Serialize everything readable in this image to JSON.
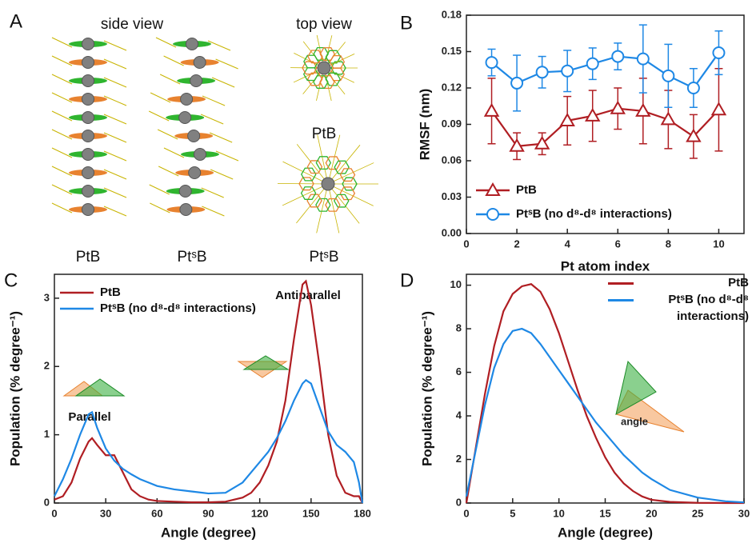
{
  "panel_a": {
    "letter": "A",
    "side_view": "side view",
    "top_view": "top view",
    "labels": [
      "PtB",
      "PtˢB",
      "PtB",
      "PtˢB"
    ]
  },
  "chart_data": [
    {
      "type": "line",
      "panel_label": "B",
      "x_label": "Pt atom index",
      "y_label": "RMSF (nm)",
      "x": [
        1,
        2,
        3,
        4,
        5,
        6,
        7,
        8,
        9,
        10
      ],
      "xlim": [
        0,
        11
      ],
      "xticks": [
        0,
        2,
        4,
        6,
        8,
        10
      ],
      "ylim": [
        0,
        0.18
      ],
      "yticks": [
        {
          "value": 0,
          "label": "0.00"
        },
        {
          "value": 0.03,
          "label": "0.03"
        },
        {
          "value": 0.06,
          "label": "0.06"
        },
        {
          "value": 0.09,
          "label": "0.09"
        },
        {
          "value": 0.12,
          "label": "0.12"
        },
        {
          "value": 0.15,
          "label": "0.15"
        },
        {
          "value": 0.18,
          "label": "0.18"
        }
      ],
      "series": [
        {
          "name": "PtB",
          "color": "#b01e23",
          "marker": "triangle",
          "values": [
            0.101,
            0.072,
            0.074,
            0.093,
            0.097,
            0.103,
            0.101,
            0.094,
            0.08,
            0.102
          ],
          "errors": [
            0.027,
            0.011,
            0.009,
            0.02,
            0.021,
            0.017,
            0.027,
            0.024,
            0.018,
            0.034
          ]
        },
        {
          "name": "PtˢB (no d⁸-d⁸ interactions)",
          "color": "#1e88e5",
          "marker": "circle",
          "values": [
            0.141,
            0.124,
            0.133,
            0.134,
            0.14,
            0.146,
            0.144,
            0.13,
            0.12,
            0.149
          ],
          "errors": [
            0.011,
            0.023,
            0.013,
            0.017,
            0.013,
            0.011,
            0.028,
            0.026,
            0.016,
            0.018
          ]
        }
      ]
    },
    {
      "type": "line",
      "panel_label": "C",
      "x_label": "Angle (degree)",
      "y_label": "Population (% degree⁻¹)",
      "annotations": [
        "Parallel",
        "Antiparallel"
      ],
      "x": [
        0,
        5,
        10,
        15,
        20,
        22,
        25,
        30,
        35,
        40,
        45,
        50,
        55,
        60,
        70,
        80,
        90,
        100,
        110,
        115,
        120,
        125,
        130,
        135,
        140,
        145,
        147,
        150,
        155,
        160,
        165,
        170,
        175,
        178,
        180
      ],
      "xlim": [
        0,
        180
      ],
      "xticks": [
        0,
        30,
        60,
        90,
        120,
        150,
        180
      ],
      "ylim": [
        0,
        3.35
      ],
      "yticks": [
        0,
        1,
        2,
        3
      ],
      "series": [
        {
          "name": "PtB",
          "color": "#b01e23",
          "values": [
            0.05,
            0.1,
            0.3,
            0.65,
            0.9,
            0.95,
            0.85,
            0.7,
            0.7,
            0.45,
            0.2,
            0.1,
            0.05,
            0.03,
            0.02,
            0.01,
            0.01,
            0.02,
            0.08,
            0.15,
            0.3,
            0.55,
            0.9,
            1.5,
            2.4,
            3.2,
            3.25,
            2.9,
            2.0,
            1.0,
            0.4,
            0.15,
            0.1,
            0.1,
            0
          ]
        },
        {
          "name": "PtˢB (no d⁸-d⁸ interactions)",
          "color": "#1e88e5",
          "values": [
            0.1,
            0.35,
            0.65,
            1.0,
            1.3,
            1.33,
            1.1,
            0.8,
            0.62,
            0.5,
            0.42,
            0.35,
            0.3,
            0.25,
            0.2,
            0.17,
            0.14,
            0.15,
            0.3,
            0.45,
            0.6,
            0.75,
            0.95,
            1.2,
            1.5,
            1.75,
            1.8,
            1.75,
            1.4,
            1.05,
            0.85,
            0.75,
            0.6,
            0.3,
            0
          ]
        }
      ]
    },
    {
      "type": "line",
      "panel_label": "D",
      "x_label": "Angle (degree)",
      "y_label": "Population (% degree⁻¹)",
      "annotations": [
        "angle"
      ],
      "x": [
        0,
        1,
        2,
        3,
        4,
        5,
        6,
        7,
        8,
        9,
        10,
        11,
        12,
        13,
        14,
        15,
        16,
        17,
        18,
        19,
        20,
        22,
        25,
        28,
        30
      ],
      "xlim": [
        0,
        30
      ],
      "xticks": [
        0,
        5,
        10,
        15,
        20,
        25,
        30
      ],
      "ylim": [
        0,
        10.5
      ],
      "yticks": [
        0,
        2,
        4,
        6,
        8,
        10
      ],
      "series": [
        {
          "name": "PtB",
          "color": "#b01e23",
          "values": [
            0,
            2.5,
            5,
            7.2,
            8.8,
            9.6,
            9.95,
            10.05,
            9.7,
            8.9,
            7.8,
            6.5,
            5.2,
            4.0,
            3.0,
            2.1,
            1.4,
            0.9,
            0.55,
            0.3,
            0.15,
            0.05,
            0.01,
            0,
            0
          ]
        },
        {
          "name": "PtˢB (no d⁸-d⁸ interactions)",
          "color": "#1e88e5",
          "values": [
            0.3,
            2.4,
            4.5,
            6.2,
            7.3,
            7.9,
            8.0,
            7.8,
            7.3,
            6.7,
            6.1,
            5.5,
            4.9,
            4.3,
            3.7,
            3.2,
            2.7,
            2.2,
            1.8,
            1.4,
            1.1,
            0.6,
            0.25,
            0.08,
            0.03
          ]
        }
      ]
    }
  ]
}
